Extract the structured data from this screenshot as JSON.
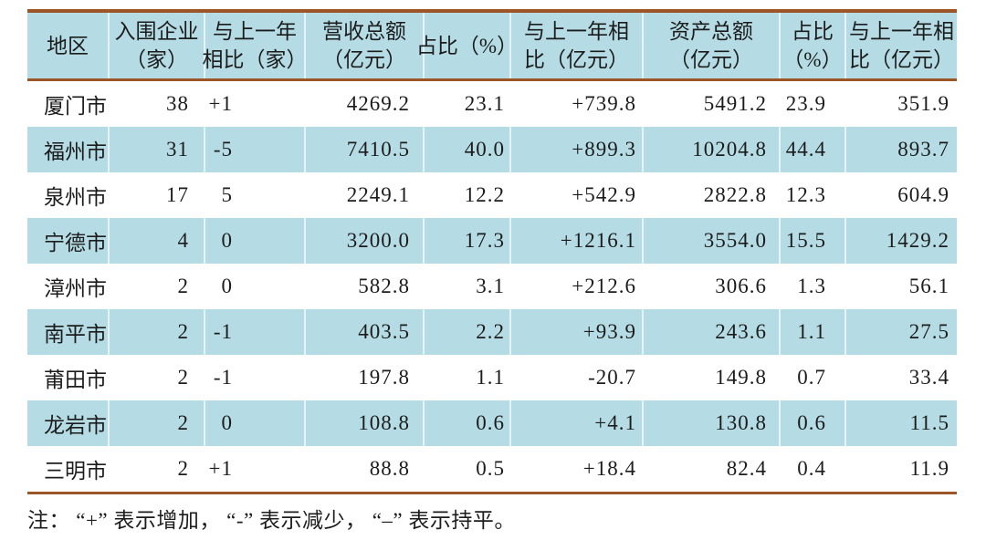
{
  "colors": {
    "stripe_blue": "#b5dce4",
    "rule_brown": "#9c5526",
    "text": "#1c1c1c",
    "cell_divider": "#ffffff"
  },
  "table": {
    "headers": [
      [
        "地区",
        ""
      ],
      [
        "入围企业",
        "（家）"
      ],
      [
        "与上一年",
        "相比（家）"
      ],
      [
        "营收总额",
        "（亿元）"
      ],
      [
        "占比（%）",
        ""
      ],
      [
        "与上一年相",
        "比（亿元）"
      ],
      [
        "资产总额",
        "（亿元）"
      ],
      [
        "占比",
        "（%）"
      ],
      [
        "与上一年相",
        "比（亿元）"
      ]
    ],
    "rows": [
      {
        "region": "厦门市",
        "enterprises": "38",
        "yoy_enterprises": "+1",
        "revenue": "4269.2",
        "revenue_share": "23.1",
        "yoy_revenue": "+739.8",
        "assets": "5491.2",
        "assets_share": "23.9",
        "yoy_assets": "351.9"
      },
      {
        "region": "福州市",
        "enterprises": "31",
        "yoy_enterprises": "-5",
        "revenue": "7410.5",
        "revenue_share": "40.0",
        "yoy_revenue": "+899.3",
        "assets": "10204.8",
        "assets_share": "44.4",
        "yoy_assets": "893.7"
      },
      {
        "region": "泉州市",
        "enterprises": "17",
        "yoy_enterprises": "5",
        "revenue": "2249.1",
        "revenue_share": "12.2",
        "yoy_revenue": "+542.9",
        "assets": "2822.8",
        "assets_share": "12.3",
        "yoy_assets": "604.9"
      },
      {
        "region": "宁德市",
        "enterprises": "4",
        "yoy_enterprises": "0",
        "revenue": "3200.0",
        "revenue_share": "17.3",
        "yoy_revenue": "+1216.1",
        "assets": "3554.0",
        "assets_share": "15.5",
        "yoy_assets": "1429.2"
      },
      {
        "region": "漳州市",
        "enterprises": "2",
        "yoy_enterprises": "0",
        "revenue": "582.8",
        "revenue_share": "3.1",
        "yoy_revenue": "+212.6",
        "assets": "306.6",
        "assets_share": "1.3",
        "yoy_assets": "56.1"
      },
      {
        "region": "南平市",
        "enterprises": "2",
        "yoy_enterprises": "-1",
        "revenue": "403.5",
        "revenue_share": "2.2",
        "yoy_revenue": "+93.9",
        "assets": "243.6",
        "assets_share": "1.1",
        "yoy_assets": "27.5"
      },
      {
        "region": "莆田市",
        "enterprises": "2",
        "yoy_enterprises": "-1",
        "revenue": "197.8",
        "revenue_share": "1.1",
        "yoy_revenue": "-20.7",
        "assets": "149.8",
        "assets_share": "0.7",
        "yoy_assets": "33.4"
      },
      {
        "region": "龙岩市",
        "enterprises": "2",
        "yoy_enterprises": "0",
        "revenue": "108.8",
        "revenue_share": "0.6",
        "yoy_revenue": "+4.1",
        "assets": "130.8",
        "assets_share": "0.6",
        "yoy_assets": "11.5"
      },
      {
        "region": "三明市",
        "enterprises": "2",
        "yoy_enterprises": "+1",
        "revenue": "88.8",
        "revenue_share": "0.5",
        "yoy_revenue": "+18.4",
        "assets": "82.4",
        "assets_share": "0.4",
        "yoy_assets": "11.9"
      }
    ],
    "note": "注： “+” 表示增加， “-” 表示减少， “–” 表示持平。"
  },
  "chart_data": {
    "type": "table",
    "title": "",
    "columns": [
      "地区",
      "入围企业（家）",
      "与上一年相比（家）",
      "营收总额（亿元）",
      "占比（%）",
      "与上一年相比（亿元）",
      "资产总额（亿元）",
      "占比（%）",
      "与上一年相比（亿元）"
    ],
    "rows": [
      [
        "厦门市",
        "38",
        "+1",
        "4269.2",
        "23.1",
        "+739.8",
        "5491.2",
        "23.9",
        "351.9"
      ],
      [
        "福州市",
        "31",
        "-5",
        "7410.5",
        "40.0",
        "+899.3",
        "10204.8",
        "44.4",
        "893.7"
      ],
      [
        "泉州市",
        "17",
        "5",
        "2249.1",
        "12.2",
        "+542.9",
        "2822.8",
        "12.3",
        "604.9"
      ],
      [
        "宁德市",
        "4",
        "0",
        "3200.0",
        "17.3",
        "+1216.1",
        "3554.0",
        "15.5",
        "1429.2"
      ],
      [
        "漳州市",
        "2",
        "0",
        "582.8",
        "3.1",
        "+212.6",
        "306.6",
        "1.3",
        "56.1"
      ],
      [
        "南平市",
        "2",
        "-1",
        "403.5",
        "2.2",
        "+93.9",
        "243.6",
        "1.1",
        "27.5"
      ],
      [
        "莆田市",
        "2",
        "-1",
        "197.8",
        "1.1",
        "-20.7",
        "149.8",
        "0.7",
        "33.4"
      ],
      [
        "龙岩市",
        "2",
        "0",
        "108.8",
        "0.6",
        "+4.1",
        "130.8",
        "0.6",
        "11.5"
      ],
      [
        "三明市",
        "2",
        "+1",
        "88.8",
        "0.5",
        "+18.4",
        "82.4",
        "0.4",
        "11.9"
      ]
    ],
    "note": "注： “+” 表示增加， “-” 表示减少， “–” 表示持平。",
    "layout_hints": {
      "striped_rows": "even rows light blue",
      "rules": "brown horizontal rules top, below header, above note"
    }
  }
}
